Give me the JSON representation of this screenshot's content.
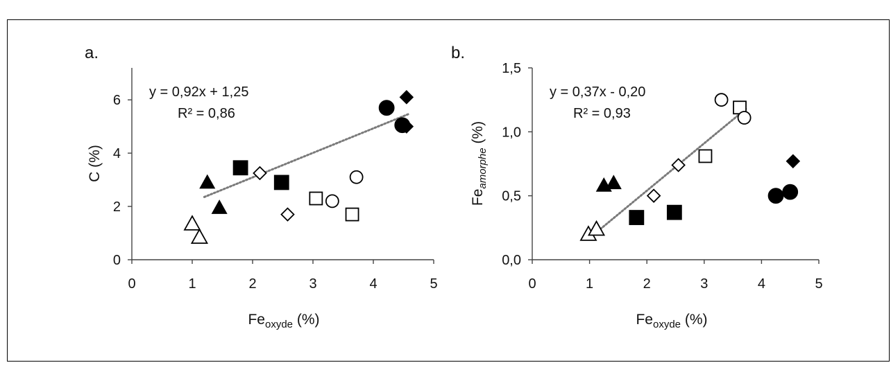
{
  "panels": [
    {
      "panel_label": "a.",
      "y_axis": {
        "main": "C (%)",
        "sub": ""
      },
      "x_axis": {
        "main": "Fe",
        "sub": "oxyde",
        "unit": " (%)"
      },
      "equation": "y = 0,92x + 1,25",
      "r_squared": "R² = 0,86",
      "x_ticks": [
        "0",
        "1",
        "2",
        "3",
        "4",
        "5"
      ],
      "y_ticks": [
        "0",
        "2",
        "4",
        "6"
      ]
    },
    {
      "panel_label": "b.",
      "y_axis": {
        "main": "Fe",
        "sub": "amorphe",
        "unit": " (%)"
      },
      "x_axis": {
        "main": "Fe",
        "sub": "oxyde",
        "unit": " (%)"
      },
      "equation": "y = 0,37x - 0,20",
      "r_squared": "R² = 0,93",
      "x_ticks": [
        "0",
        "1",
        "2",
        "3",
        "4",
        "5"
      ],
      "y_ticks": [
        "0,0",
        "0,5",
        "1,0",
        "1,5"
      ]
    }
  ],
  "chart_data": [
    {
      "type": "scatter",
      "title": "",
      "xlabel": "Fe oxyde (%)",
      "ylabel": "C (%)",
      "xlim": [
        0,
        5
      ],
      "ylim": [
        0,
        7.2
      ],
      "x_ticks": [
        0,
        1,
        2,
        3,
        4,
        5
      ],
      "y_ticks": [
        0,
        2,
        4,
        6
      ],
      "grid": false,
      "legend": "none",
      "series": [
        {
          "marker": "triangle-open",
          "points": [
            [
              1.0,
              1.35
            ],
            [
              1.12,
              0.85
            ]
          ]
        },
        {
          "marker": "triangle-filled",
          "points": [
            [
              1.25,
              2.9
            ],
            [
              1.45,
              1.95
            ]
          ]
        },
        {
          "marker": "square-filled",
          "points": [
            [
              1.8,
              3.45
            ],
            [
              2.48,
              2.9
            ]
          ]
        },
        {
          "marker": "diamond-open",
          "points": [
            [
              2.12,
              3.25
            ],
            [
              2.58,
              1.7
            ]
          ]
        },
        {
          "marker": "square-open",
          "points": [
            [
              3.05,
              2.3
            ],
            [
              3.65,
              1.7
            ]
          ]
        },
        {
          "marker": "circle-open",
          "points": [
            [
              3.32,
              2.2
            ],
            [
              3.72,
              3.1
            ]
          ]
        },
        {
          "marker": "circle-filled",
          "points": [
            [
              4.22,
              5.7
            ],
            [
              4.48,
              5.05
            ]
          ]
        },
        {
          "marker": "diamond-filled",
          "points": [
            [
              4.55,
              6.1
            ],
            [
              4.55,
              5.0
            ]
          ]
        }
      ],
      "trendline": {
        "slope": 0.92,
        "intercept": 1.25,
        "x_range": [
          1.2,
          4.6
        ],
        "style": "dotted",
        "color": "#7a7a7a"
      }
    },
    {
      "type": "scatter",
      "title": "",
      "xlabel": "Fe oxyde (%)",
      "ylabel": "Fe amorphe (%)",
      "xlim": [
        0,
        5
      ],
      "ylim": [
        0,
        1.5
      ],
      "x_ticks": [
        0,
        1,
        2,
        3,
        4,
        5
      ],
      "y_ticks": [
        0.0,
        0.5,
        1.0,
        1.5
      ],
      "grid": false,
      "legend": "none",
      "series": [
        {
          "marker": "triangle-open",
          "points": [
            [
              0.98,
              0.2
            ],
            [
              1.12,
              0.24
            ]
          ]
        },
        {
          "marker": "triangle-filled",
          "points": [
            [
              1.25,
              0.58
            ],
            [
              1.42,
              0.6
            ]
          ]
        },
        {
          "marker": "square-filled",
          "points": [
            [
              1.82,
              0.33
            ],
            [
              2.48,
              0.37
            ]
          ]
        },
        {
          "marker": "diamond-open",
          "points": [
            [
              2.12,
              0.5
            ],
            [
              2.55,
              0.74
            ]
          ]
        },
        {
          "marker": "square-open",
          "points": [
            [
              3.02,
              0.81
            ],
            [
              3.62,
              1.19
            ]
          ]
        },
        {
          "marker": "circle-open",
          "points": [
            [
              3.3,
              1.25
            ],
            [
              3.7,
              1.11
            ]
          ]
        },
        {
          "marker": "circle-filled",
          "points": [
            [
              4.25,
              0.5
            ],
            [
              4.5,
              0.53
            ]
          ]
        },
        {
          "marker": "diamond-filled",
          "points": [
            [
              4.55,
              0.77
            ]
          ]
        }
      ],
      "trendline": {
        "slope": 0.37,
        "intercept": -0.2,
        "x_range": [
          1.05,
          3.75
        ],
        "style": "dotted",
        "color": "#7a7a7a"
      }
    }
  ]
}
